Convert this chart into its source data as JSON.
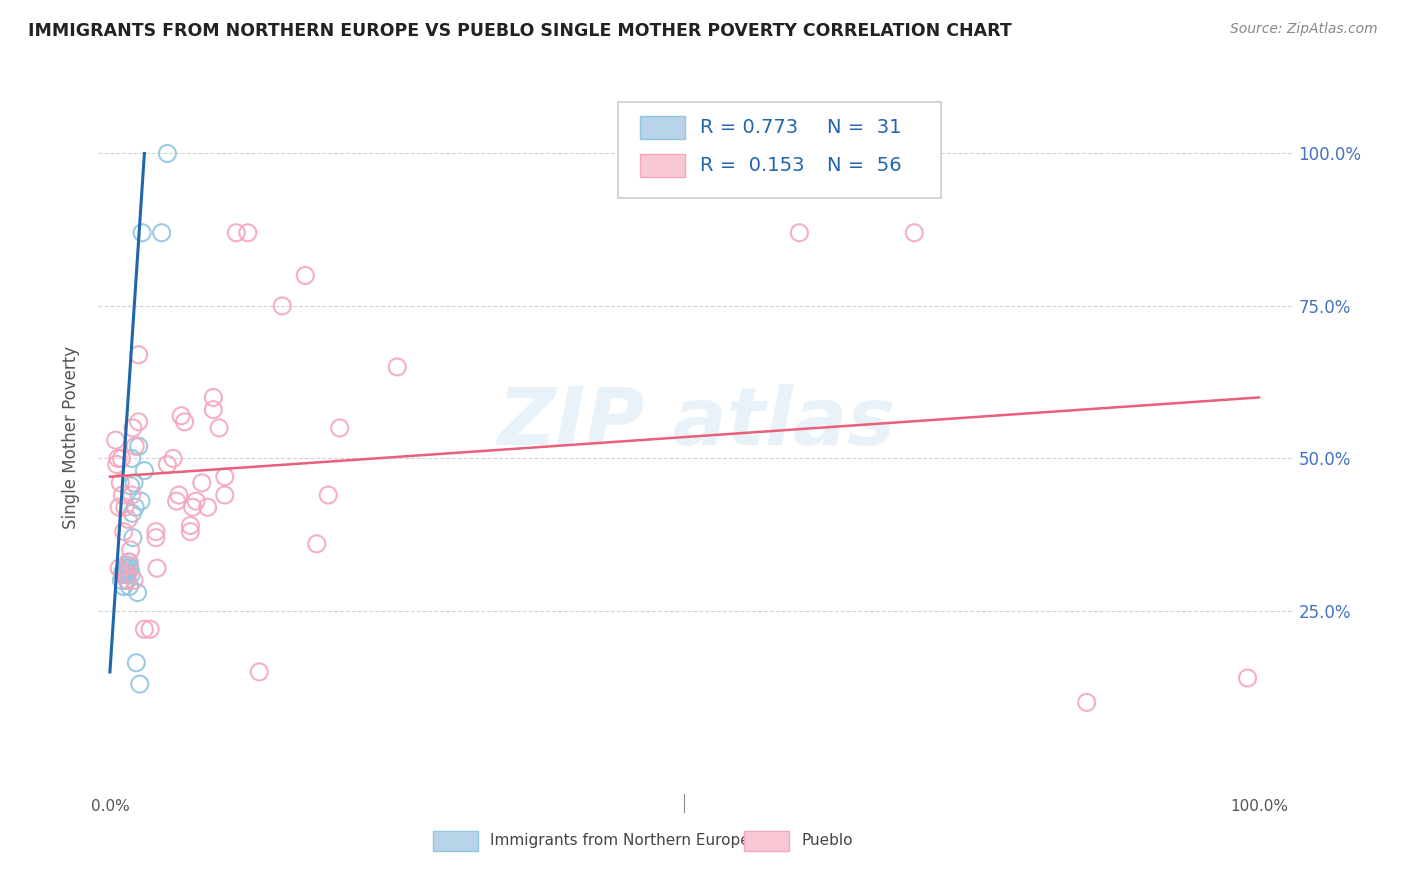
{
  "title": "IMMIGRANTS FROM NORTHERN EUROPE VS PUEBLO SINGLE MOTHER POVERTY CORRELATION CHART",
  "source": "Source: ZipAtlas.com",
  "ylabel": "Single Mother Poverty",
  "legend_blue_label": "Immigrants from Northern Europe",
  "legend_pink_label": "Pueblo",
  "blue_scatter_x": [
    1.0,
    1.1,
    1.15,
    1.2,
    1.25,
    1.3,
    1.35,
    1.4,
    1.45,
    1.5,
    1.55,
    1.6,
    1.65,
    1.7,
    1.75,
    1.8,
    1.85,
    1.9,
    1.95,
    2.0,
    2.1,
    2.2,
    2.3,
    2.4,
    2.5,
    2.6,
    2.7,
    2.8,
    3.0,
    4.5,
    5.0
  ],
  "blue_scatter_y": [
    30.0,
    31.0,
    31.5,
    29.0,
    31.0,
    31.5,
    32.0,
    31.0,
    32.0,
    30.0,
    32.5,
    33.0,
    31.5,
    29.0,
    32.0,
    45.5,
    31.0,
    50.0,
    41.0,
    37.0,
    46.0,
    42.0,
    16.5,
    28.0,
    52.0,
    13.0,
    43.0,
    87.0,
    48.0,
    87.0,
    100.0
  ],
  "pink_scatter_x": [
    0.5,
    0.6,
    0.7,
    0.8,
    0.8,
    0.9,
    1.0,
    1.1,
    1.2,
    1.3,
    1.5,
    1.5,
    1.6,
    1.7,
    1.8,
    1.9,
    2.0,
    2.1,
    2.2,
    2.5,
    2.5,
    3.0,
    3.5,
    4.0,
    4.0,
    4.1,
    5.0,
    5.5,
    5.8,
    6.0,
    6.2,
    6.5,
    7.0,
    7.0,
    7.2,
    7.5,
    8.0,
    8.5,
    9.0,
    9.0,
    9.5,
    10.0,
    10.0,
    11.0,
    12.0,
    13.0,
    15.0,
    17.0,
    18.0,
    19.0,
    20.0,
    25.0,
    60.0,
    70.0,
    85.0,
    99.0
  ],
  "pink_scatter_y": [
    53.0,
    49.0,
    50.0,
    32.0,
    42.0,
    46.0,
    50.0,
    44.0,
    38.0,
    42.0,
    31.0,
    30.0,
    40.0,
    33.0,
    35.0,
    44.0,
    55.0,
    30.0,
    52.0,
    56.0,
    67.0,
    22.0,
    22.0,
    38.0,
    37.0,
    32.0,
    49.0,
    50.0,
    43.0,
    44.0,
    57.0,
    56.0,
    39.0,
    38.0,
    42.0,
    43.0,
    46.0,
    42.0,
    58.0,
    60.0,
    55.0,
    47.0,
    44.0,
    87.0,
    87.0,
    15.0,
    75.0,
    80.0,
    36.0,
    44.0,
    55.0,
    65.0,
    87.0,
    87.0,
    10.0,
    14.0
  ],
  "blue_line_x": [
    0.0,
    3.0
  ],
  "blue_line_y": [
    15.0,
    100.0
  ],
  "pink_line_x": [
    0.0,
    100.0
  ],
  "pink_line_y": [
    47.0,
    60.0
  ],
  "xlim": [
    -1.0,
    103.0
  ],
  "ylim": [
    -5.0,
    112.0
  ],
  "yticks": [
    25.0,
    50.0,
    75.0,
    100.0
  ],
  "xticks": [
    0.0,
    100.0
  ],
  "background_color": "#ffffff",
  "blue_color": "#92c5de",
  "pink_color": "#f4a6bd",
  "blue_line_color": "#2166ac",
  "pink_line_color": "#e8607a",
  "grid_color": "#c8c8c8",
  "title_color": "#222222",
  "axis_label_color": "#555555",
  "right_tick_color": "#4472c4",
  "source_color": "#888888"
}
